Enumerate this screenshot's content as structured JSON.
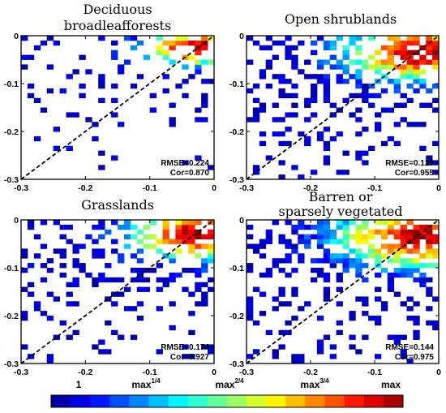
{
  "chart_data": [
    {
      "type": "heatmap",
      "title_lines": [
        "Deciduous",
        "broadleafforests"
      ],
      "xlim": [
        -0.3,
        0
      ],
      "ylim": [
        -0.3,
        0
      ],
      "xticks": [
        "-0.3",
        "-0.2",
        "-0.1",
        "0"
      ],
      "yticks": [
        "0",
        "-0.1",
        "-0.2",
        "-0.3"
      ],
      "reference_line": "1:1 dashed",
      "rmse": "RMSE=0.224",
      "cor": "Cor=0.870",
      "density": {
        "center": [
          -0.025,
          -0.025
        ],
        "spread_x": 0.075,
        "spread_y": 0.03,
        "fill": 0.55,
        "seed": 11
      }
    },
    {
      "type": "heatmap",
      "title_lines": [
        "Open shrublands"
      ],
      "xlim": [
        -0.3,
        0
      ],
      "ylim": [
        -0.3,
        0
      ],
      "xticks": [
        "-0.3",
        "-0.2",
        "-0.1",
        "0"
      ],
      "yticks": [
        "0",
        "-0.1",
        "-0.2",
        "-0.3"
      ],
      "reference_line": "1:1 dashed",
      "rmse": "RMSE=0.129",
      "cor": "Cor=0.955",
      "density": {
        "center": [
          -0.03,
          -0.035
        ],
        "spread_x": 0.1,
        "spread_y": 0.05,
        "fill": 0.8,
        "seed": 23
      }
    },
    {
      "type": "heatmap",
      "title_lines": [
        "Grasslands"
      ],
      "xlim": [
        -0.3,
        0
      ],
      "ylim": [
        -0.3,
        0
      ],
      "xticks": [
        "-0.3",
        "-0.2",
        "-0.1",
        "0"
      ],
      "yticks": [
        "0",
        "-0.1",
        "-0.2",
        "-0.3"
      ],
      "reference_line": "1:1 dashed",
      "rmse": "RMSE=0.174",
      "cor": "Cor=0.927",
      "density": {
        "center": [
          -0.025,
          -0.03
        ],
        "spread_x": 0.09,
        "spread_y": 0.045,
        "fill": 0.75,
        "seed": 37
      }
    },
    {
      "type": "heatmap",
      "title_lines": [
        "Barren or",
        "sparsely vegetated"
      ],
      "xlim": [
        -0.3,
        0
      ],
      "ylim": [
        -0.3,
        0
      ],
      "xticks": [
        "-0.3",
        "-0.2",
        "-0.1",
        "0"
      ],
      "yticks": [
        "0",
        "-0.1",
        "-0.2",
        "-0.3"
      ],
      "reference_line": "1:1 dashed",
      "rmse": "RMSE=0.144",
      "cor": "Cor=0.975",
      "density": {
        "center": [
          -0.03,
          -0.035
        ],
        "spread_x": 0.11,
        "spread_y": 0.055,
        "fill": 0.8,
        "seed": 53
      }
    }
  ],
  "colorbar": {
    "labels": [
      {
        "base": "1",
        "sup": ""
      },
      {
        "base": "max",
        "sup": "1/4"
      },
      {
        "base": "max",
        "sup": "2/4"
      },
      {
        "base": "max",
        "sup": "3/4"
      },
      {
        "base": "max",
        "sup": ""
      }
    ],
    "colormap": "jet",
    "steps": 18
  }
}
